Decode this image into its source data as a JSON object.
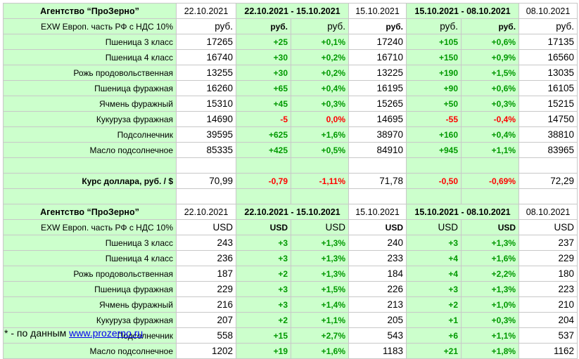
{
  "rub_table": {
    "header": {
      "agency": "Агентство “ПроЗерно”",
      "date1": "22.10.2021",
      "range1": "22.10.2021 - 15.10.2021",
      "date2": "15.10.2021",
      "range2": "15.10.2021 - 08.10.2021",
      "date3": "08.10.2021"
    },
    "units_row": {
      "label": "EXW Европ. часть РФ с НДС 10%",
      "u1": "руб.",
      "u2": "руб.",
      "u3": "руб.",
      "u4": "руб.",
      "u5": "руб.",
      "u6": "руб.",
      "u7": "руб."
    },
    "rows": [
      {
        "name": "Пшеница 3 класс",
        "v1": "17265",
        "d1": "+25",
        "p1": "+0,1%",
        "v2": "17240",
        "d2": "+105",
        "p2": "+0,6%",
        "v3": "17135"
      },
      {
        "name": "Пшеница 4 класс",
        "v1": "16740",
        "d1": "+30",
        "p1": "+0,2%",
        "v2": "16710",
        "d2": "+150",
        "p2": "+0,9%",
        "v3": "16560"
      },
      {
        "name": "Рожь продовольственная",
        "v1": "13255",
        "d1": "+30",
        "p1": "+0,2%",
        "v2": "13225",
        "d2": "+190",
        "p2": "+1,5%",
        "v3": "13035"
      },
      {
        "name": "Пшеница фуражная",
        "v1": "16260",
        "d1": "+65",
        "p1": "+0,4%",
        "v2": "16195",
        "d2": "+90",
        "p2": "+0,6%",
        "v3": "16105"
      },
      {
        "name": "Ячмень фуражный",
        "v1": "15310",
        "d1": "+45",
        "p1": "+0,3%",
        "v2": "15265",
        "d2": "+50",
        "p2": "+0,3%",
        "v3": "15215"
      },
      {
        "name": "Кукуруза фуражная",
        "v1": "14690",
        "d1": "-5",
        "p1": "0,0%",
        "v2": "14695",
        "d2": "-55",
        "p2": "-0,4%",
        "v3": "14750"
      },
      {
        "name": "Подсолнечник",
        "v1": "39595",
        "d1": "+625",
        "p1": "+1,6%",
        "v2": "38970",
        "d2": "+160",
        "p2": "+0,4%",
        "v3": "38810"
      },
      {
        "name": "Масло подсолнечное",
        "v1": "85335",
        "d1": "+425",
        "p1": "+0,5%",
        "v2": "84910",
        "d2": "+945",
        "p2": "+1,1%",
        "v3": "83965"
      }
    ],
    "dollar_row": {
      "label": "Курс доллара, руб. / $",
      "v1": "70,99",
      "d1": "-0,79",
      "p1": "-1,11%",
      "v2": "71,78",
      "d2": "-0,50",
      "p2": "-0,69%",
      "v3": "72,29"
    }
  },
  "usd_table": {
    "header": {
      "agency": "Агентство “ПроЗерно”",
      "date1": "22.10.2021",
      "range1": "22.10.2021 - 15.10.2021",
      "date2": "15.10.2021",
      "range2": "15.10.2021 - 08.10.2021",
      "date3": "08.10.2021"
    },
    "units_row": {
      "label": "EXW Европ. часть РФ с НДС 10%",
      "u1": "USD",
      "u2": "USD",
      "u3": "USD",
      "u4": "USD",
      "u5": "USD",
      "u6": "USD",
      "u7": "USD"
    },
    "rows": [
      {
        "name": "Пшеница 3 класс",
        "v1": "243",
        "d1": "+3",
        "p1": "+1,3%",
        "v2": "240",
        "d2": "+3",
        "p2": "+1,3%",
        "v3": "237"
      },
      {
        "name": "Пшеница 4 класс",
        "v1": "236",
        "d1": "+3",
        "p1": "+1,3%",
        "v2": "233",
        "d2": "+4",
        "p2": "+1,6%",
        "v3": "229"
      },
      {
        "name": "Рожь продовольственная",
        "v1": "187",
        "d1": "+2",
        "p1": "+1,3%",
        "v2": "184",
        "d2": "+4",
        "p2": "+2,2%",
        "v3": "180"
      },
      {
        "name": "Пшеница фуражная",
        "v1": "229",
        "d1": "+3",
        "p1": "+1,5%",
        "v2": "226",
        "d2": "+3",
        "p2": "+1,3%",
        "v3": "223"
      },
      {
        "name": "Ячмень фуражный",
        "v1": "216",
        "d1": "+3",
        "p1": "+1,4%",
        "v2": "213",
        "d2": "+2",
        "p2": "+1,0%",
        "v3": "210"
      },
      {
        "name": "Кукуруза фуражная",
        "v1": "207",
        "d1": "+2",
        "p1": "+1,1%",
        "v2": "205",
        "d2": "+1",
        "p2": "+0,3%",
        "v3": "204"
      },
      {
        "name": "Подсолнечник",
        "v1": "558",
        "d1": "+15",
        "p1": "+2,7%",
        "v2": "543",
        "d2": "+6",
        "p2": "+1,1%",
        "v3": "537"
      },
      {
        "name": "Масло подсолнечное",
        "v1": "1202",
        "d1": "+19",
        "p1": "+1,6%",
        "v2": "1183",
        "d2": "+21",
        "p2": "+1,8%",
        "v3": "1162"
      }
    ]
  },
  "footer": {
    "prefix": "* - по данным ",
    "link": "www.prozerno.ru"
  },
  "colors": {
    "green_fill": "#ccffcc",
    "positive": "#009900",
    "negative": "#ff0000",
    "link": "#0000ee"
  }
}
